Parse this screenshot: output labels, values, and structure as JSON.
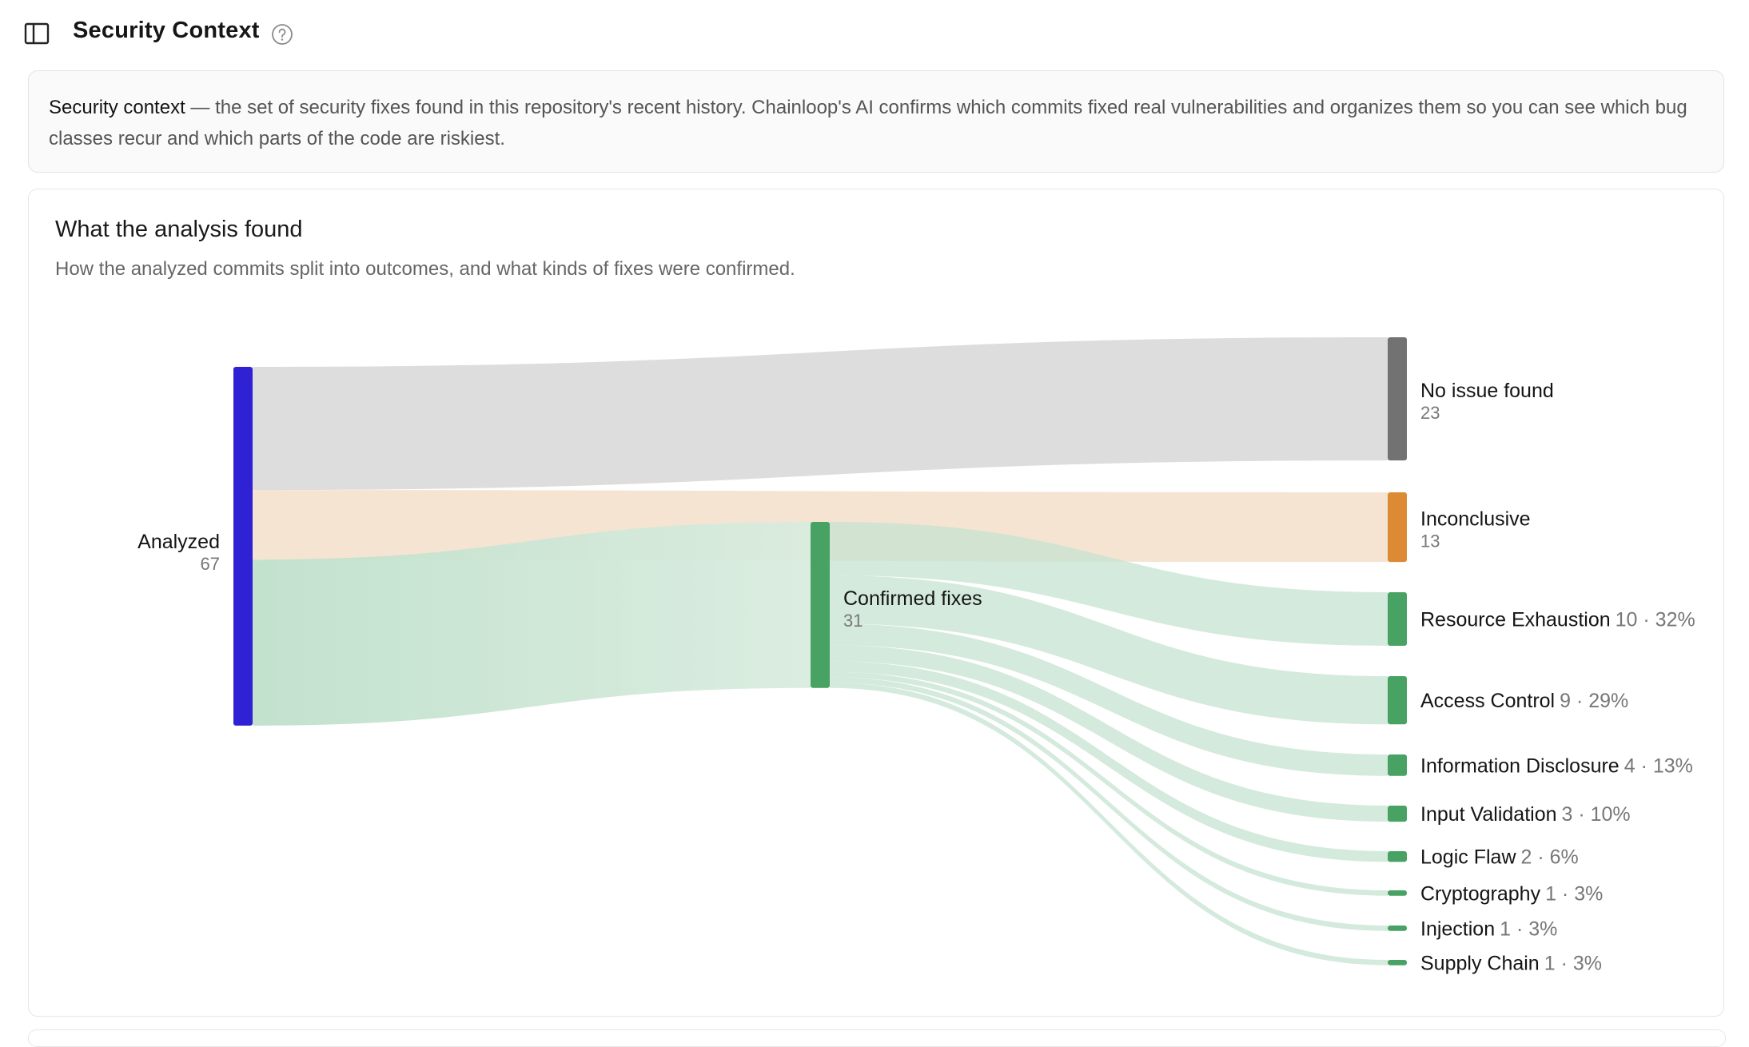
{
  "header": {
    "title": "Security Context",
    "sidebar_toggle_icon": "sidebar-panel-icon",
    "help_icon": "question-circle-icon"
  },
  "intro": {
    "term": "Security context",
    "text": " — the set of security fixes found in this repository's recent history. Chainloop's AI confirms which commits fixed real vulnerabilities and organizes them so you can see which bug classes recur and which parts of the code are riskiest."
  },
  "analysis_card": {
    "title": "What the analysis found",
    "subtitle": "How the analyzed commits split into outcomes, and what kinds of fixes were confirmed."
  },
  "colors": {
    "analyzed": "#2f21d4",
    "no_issue": "#727272",
    "inconclusive": "#dc8a34",
    "confirmed": "#47a264",
    "flow_gray": "#d4d4d4",
    "flow_orange": "#f1d9bf",
    "flow_green": "#c5e3d0"
  },
  "chart_data": {
    "type": "sankey",
    "source": {
      "name": "Analyzed",
      "value": 67
    },
    "outcomes": [
      {
        "name": "No issue found",
        "value": 23
      },
      {
        "name": "Inconclusive",
        "value": 13
      },
      {
        "name": "Confirmed fixes",
        "value": 31
      }
    ],
    "categories": [
      {
        "name": "Resource Exhaustion",
        "value": 10,
        "meta": "10 · 32%"
      },
      {
        "name": "Access Control",
        "value": 9,
        "meta": "9 · 29%"
      },
      {
        "name": "Information Disclosure",
        "value": 4,
        "meta": "4 · 13%"
      },
      {
        "name": "Input Validation",
        "value": 3,
        "meta": "3 · 10%"
      },
      {
        "name": "Logic Flaw",
        "value": 2,
        "meta": "2 · 6%"
      },
      {
        "name": "Cryptography",
        "value": 1,
        "meta": "1 · 3%"
      },
      {
        "name": "Injection",
        "value": 1,
        "meta": "1 · 3%"
      },
      {
        "name": "Supply Chain",
        "value": 1,
        "meta": "1 · 3%"
      }
    ]
  }
}
